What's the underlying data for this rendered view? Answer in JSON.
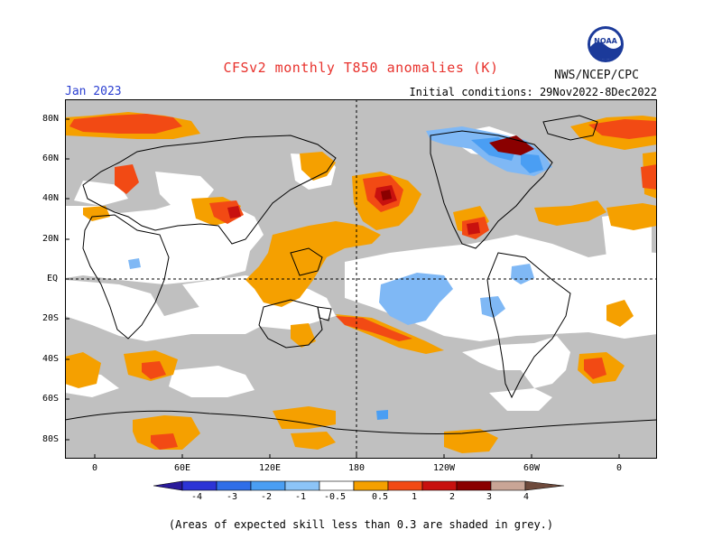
{
  "header": {
    "title": "CFSv2 monthly T850 anomalies (K)",
    "month": "Jan 2023",
    "initial_conditions": "Initial conditions: 29Nov2022-8Dec2022",
    "agency": "NWS/NCEP/CPC",
    "logo_text": "NOAA"
  },
  "axes": {
    "lat_labels": [
      "80N",
      "60N",
      "40N",
      "20N",
      "EQ",
      "20S",
      "40S",
      "60S",
      "80S"
    ],
    "lon_labels": [
      "0",
      "60E",
      "120E",
      "180",
      "120W",
      "60W",
      "0"
    ]
  },
  "legend": {
    "labels": [
      "-4",
      "-3",
      "-2",
      "-1",
      "-0.5",
      "0.5",
      "1",
      "2",
      "3",
      "4"
    ],
    "colors": [
      "#2a1a9a",
      "#2c34d6",
      "#2f6ee8",
      "#4a9ef3",
      "#8cc4f7",
      "#ffffff",
      "#f5a000",
      "#f24a14",
      "#c8110f",
      "#8a0000",
      "#c9a596",
      "#6e4a3c"
    ]
  },
  "footnote": "(Areas of expected skill less than 0.3 are shaded in grey.)",
  "colors": {
    "grey": "#c0c0c0",
    "orange": "#f5a000",
    "red": "#f24a14",
    "darkred": "#c8110f",
    "maroon": "#8a0000",
    "lightblue": "#7fb8f5",
    "blue": "#4a9ef3"
  }
}
